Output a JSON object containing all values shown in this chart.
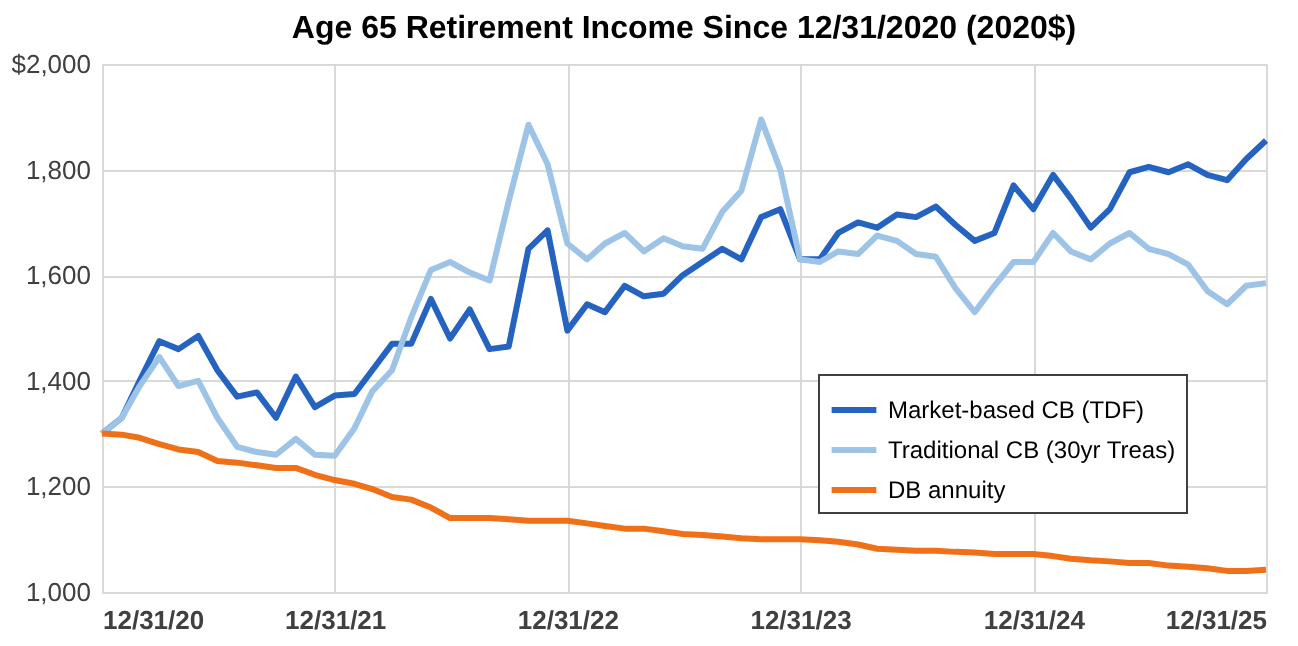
{
  "chart_data": {
    "type": "line",
    "title": "Age 65 Retirement Income Since 12/31/2020 (2020$)",
    "x": [
      "2020-12-31",
      "2021-01-31",
      "2021-02-28",
      "2021-03-31",
      "2021-04-30",
      "2021-05-31",
      "2021-06-30",
      "2021-07-31",
      "2021-08-31",
      "2021-09-30",
      "2021-10-31",
      "2021-11-30",
      "2021-12-31",
      "2022-01-31",
      "2022-02-28",
      "2022-03-31",
      "2022-04-30",
      "2022-05-31",
      "2022-06-30",
      "2022-07-31",
      "2022-08-31",
      "2022-09-30",
      "2022-10-31",
      "2022-11-30",
      "2022-12-31",
      "2023-01-31",
      "2023-02-28",
      "2023-03-31",
      "2023-04-30",
      "2023-05-31",
      "2023-06-30",
      "2023-07-31",
      "2023-08-31",
      "2023-09-30",
      "2023-10-31",
      "2023-11-30",
      "2023-12-31",
      "2024-01-31",
      "2024-02-29",
      "2024-03-31",
      "2024-04-30",
      "2024-05-31",
      "2024-06-30",
      "2024-07-31",
      "2024-08-31",
      "2024-09-30",
      "2024-10-31",
      "2024-11-30",
      "2024-12-31",
      "2025-01-31",
      "2025-02-28",
      "2025-03-31",
      "2025-04-30",
      "2025-05-31",
      "2025-06-30",
      "2025-07-31",
      "2025-08-31",
      "2025-09-30",
      "2025-10-31",
      "2025-11-30",
      "2025-12-31"
    ],
    "series": [
      {
        "name": "Market-based CB (TDF)",
        "color": "#2563c0",
        "values": [
          1300,
          1330,
          1400,
          1475,
          1460,
          1485,
          1420,
          1370,
          1378,
          1330,
          1408,
          1350,
          1372,
          1375,
          1420,
          1470,
          1470,
          1555,
          1480,
          1535,
          1460,
          1465,
          1650,
          1685,
          1495,
          1545,
          1530,
          1580,
          1560,
          1565,
          1600,
          1625,
          1650,
          1630,
          1710,
          1725,
          1630,
          1630,
          1680,
          1700,
          1690,
          1715,
          1710,
          1730,
          1695,
          1665,
          1680,
          1770,
          1725,
          1790,
          1745,
          1690,
          1725,
          1795,
          1805,
          1795,
          1810,
          1790,
          1780,
          1820,
          1855
        ]
      },
      {
        "name": "Traditional CB (30yr Treas)",
        "color": "#9dc3e6",
        "values": [
          1300,
          1330,
          1390,
          1445,
          1390,
          1400,
          1330,
          1275,
          1265,
          1260,
          1290,
          1260,
          1258,
          1310,
          1380,
          1420,
          1520,
          1610,
          1625,
          1605,
          1590,
          1740,
          1885,
          1810,
          1660,
          1630,
          1660,
          1680,
          1645,
          1670,
          1655,
          1650,
          1720,
          1760,
          1895,
          1800,
          1630,
          1625,
          1645,
          1640,
          1675,
          1665,
          1640,
          1635,
          1575,
          1530,
          1580,
          1625,
          1625,
          1680,
          1645,
          1630,
          1660,
          1680,
          1650,
          1640,
          1620,
          1570,
          1545,
          1580,
          1585
        ]
      },
      {
        "name": "DB annuity",
        "color": "#f07018",
        "values": [
          1300,
          1298,
          1292,
          1280,
          1270,
          1265,
          1248,
          1245,
          1240,
          1235,
          1235,
          1222,
          1212,
          1205,
          1195,
          1180,
          1175,
          1160,
          1140,
          1140,
          1140,
          1138,
          1135,
          1135,
          1135,
          1130,
          1125,
          1120,
          1120,
          1115,
          1110,
          1108,
          1105,
          1102,
          1100,
          1100,
          1100,
          1098,
          1095,
          1090,
          1082,
          1080,
          1078,
          1078,
          1076,
          1075,
          1072,
          1072,
          1072,
          1068,
          1063,
          1060,
          1058,
          1055,
          1055,
          1050,
          1048,
          1045,
          1040,
          1040,
          1042
        ]
      }
    ],
    "xlim": [
      "2020-12-31",
      "2025-12-31"
    ],
    "xticks": [
      {
        "value": "2020-12-31",
        "label": "12/31/20"
      },
      {
        "value": "2021-12-31",
        "label": "12/31/21"
      },
      {
        "value": "2022-12-31",
        "label": "12/31/22"
      },
      {
        "value": "2023-12-31",
        "label": "12/31/23"
      },
      {
        "value": "2024-12-31",
        "label": "12/31/24"
      },
      {
        "value": "2025-12-31",
        "label": "12/31/25"
      }
    ],
    "ylim": [
      1000,
      2000
    ],
    "yticks": [
      {
        "value": 1000,
        "label": "1,000"
      },
      {
        "value": 1200,
        "label": "1,200"
      },
      {
        "value": 1400,
        "label": "1,400"
      },
      {
        "value": 1600,
        "label": "1,600"
      },
      {
        "value": 1800,
        "label": "1,800"
      },
      {
        "value": 2000,
        "label": "$2,000"
      }
    ],
    "grid": true,
    "legend": "bottom right",
    "marker": "none",
    "line_style": "solid"
  }
}
